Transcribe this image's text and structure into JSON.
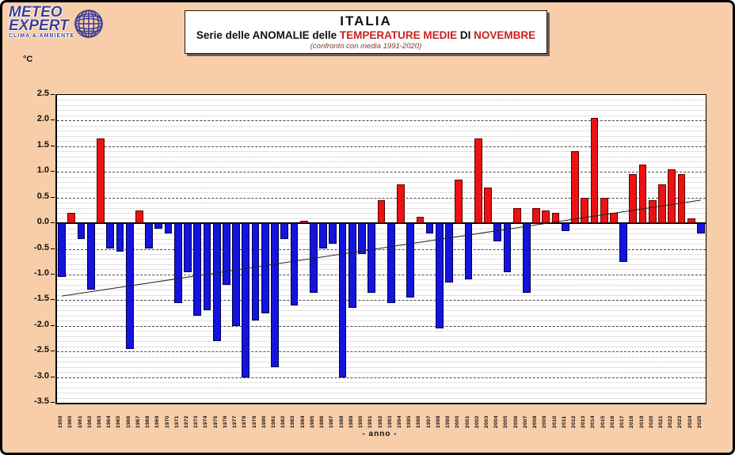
{
  "page": {
    "background": "#F8CDA9",
    "frame_border": "#000000"
  },
  "logo": {
    "line1": "METEO",
    "line2": "EXPERT",
    "tagline": "CLIMA & AMBIENTE",
    "color": "#3b3e92"
  },
  "title_box": {
    "title": "ITALIA",
    "subtitle_segments": [
      {
        "text": "Serie delle ANOMALIE delle ",
        "color": "#111111"
      },
      {
        "text": "TEMPERATURE MEDIE",
        "color": "#cc2020"
      },
      {
        "text": " DI ",
        "color": "#111111"
      },
      {
        "text": "NOVEMBRE",
        "color": "#cc2020"
      }
    ],
    "note": "(confronto con media 1991-2020)"
  },
  "axis": {
    "unit_label": "°C",
    "x_axis_title": "- anno -"
  },
  "chart_data": {
    "type": "bar",
    "title": "ITALIA - Serie delle ANOMALIE delle TEMPERATURE MEDIE di NOVEMBRE (confronto con media 1991-2020)",
    "xlabel": "anno",
    "ylabel": "°C",
    "ylim": [
      -3.5,
      2.5
    ],
    "y_tick_step": 0.5,
    "minor_grid_step": 0.1,
    "grid": "major dashed black, minor dotted gray, solid zero line",
    "legend": "none",
    "positive_color": "#ee1111",
    "negative_color": "#1414dd",
    "categories": [
      1959,
      1960,
      1961,
      1962,
      1963,
      1964,
      1965,
      1966,
      1967,
      1968,
      1969,
      1970,
      1971,
      1972,
      1973,
      1974,
      1975,
      1976,
      1977,
      1978,
      1979,
      1980,
      1981,
      1982,
      1983,
      1984,
      1985,
      1986,
      1987,
      1988,
      1989,
      1990,
      1991,
      1992,
      1993,
      1994,
      1995,
      1996,
      1997,
      1998,
      1999,
      2000,
      2001,
      2002,
      2003,
      2004,
      2005,
      2006,
      2007,
      2008,
      2009,
      2010,
      2011,
      2012,
      2013,
      2014,
      2015,
      2016,
      2017,
      2018,
      2019,
      2020,
      2021,
      2022,
      2023,
      2024,
      2025
    ],
    "values": [
      -1.05,
      0.2,
      -0.3,
      -1.3,
      1.65,
      -0.5,
      -0.55,
      -2.45,
      0.25,
      -0.5,
      -0.1,
      -0.2,
      -1.55,
      -0.95,
      -1.8,
      -1.7,
      -2.3,
      -1.2,
      -2.0,
      -3.0,
      -1.9,
      -1.75,
      -2.8,
      -0.3,
      -1.6,
      0.05,
      -1.35,
      -0.5,
      -0.4,
      -3.0,
      -1.65,
      -0.6,
      -1.35,
      0.45,
      -1.55,
      0.75,
      -1.45,
      0.12,
      -0.2,
      -2.05,
      -1.15,
      0.85,
      -1.1,
      1.65,
      0.7,
      -0.35,
      -0.95,
      0.3,
      -1.35,
      0.3,
      0.25,
      0.2,
      -0.15,
      1.4,
      0.5,
      2.05,
      0.5,
      0.2,
      -0.75,
      0.95,
      1.15,
      0.45,
      0.75,
      1.05,
      0.95,
      0.1,
      -0.2
    ],
    "trend_line": {
      "start_year": 1959,
      "start_value": -1.42,
      "end_year": 2025,
      "end_value": 0.45
    }
  }
}
